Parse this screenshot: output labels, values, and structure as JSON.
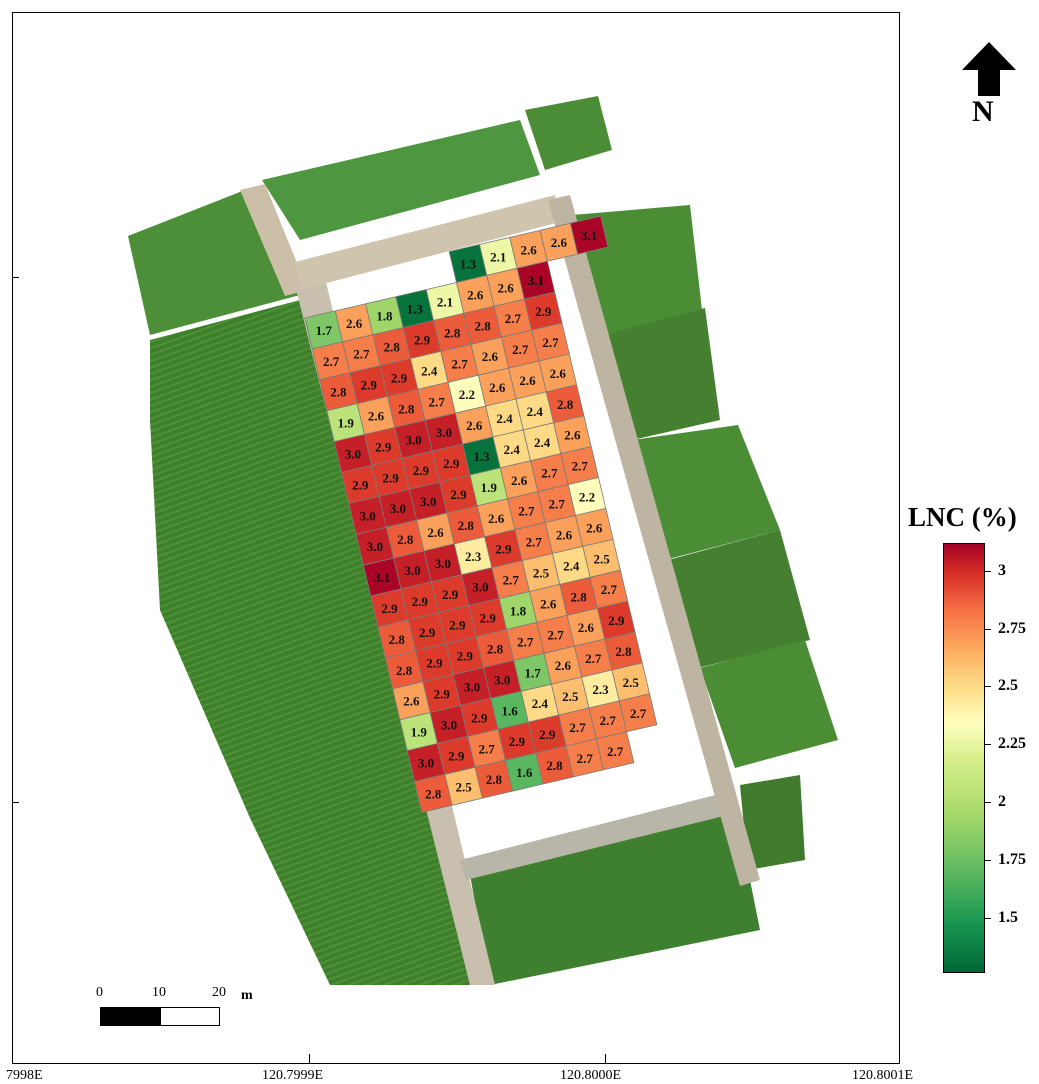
{
  "map": {
    "north_label": "N",
    "legend_title": "LNC (%)",
    "colorbar_ticks": [
      "3",
      "2.75",
      "2.5",
      "2.25",
      "2",
      "1.75",
      "1.5"
    ],
    "colorbar_range": [
      1.26,
      3.12
    ],
    "colormap": [
      "#006837",
      "#1a9850",
      "#66bd63",
      "#a6d96a",
      "#d9ef8b",
      "#ffffbf",
      "#fee08b",
      "#fdae61",
      "#f46d43",
      "#d73027",
      "#a50026"
    ],
    "scale_bar": {
      "labels": [
        "0",
        "10",
        "20"
      ],
      "unit": "m"
    },
    "longitude_labels": [
      "7998E",
      "120.7999E",
      "120.8000E",
      "120.8001E"
    ],
    "plot_values": [
      [
        null,
        null,
        null,
        null,
        null,
        "1.3",
        "2.1",
        "2.6",
        "2.6",
        "3.1"
      ],
      [
        "1.7",
        "2.6",
        "1.8",
        "1.3",
        "2.1",
        "2.6",
        "2.6",
        "3.1",
        null,
        null
      ],
      [
        "2.7",
        "2.7",
        "2.8",
        "2.9",
        "2.8",
        "2.8",
        "2.7",
        "2.9",
        null,
        null
      ],
      [
        "2.8",
        "2.9",
        "2.9",
        "2.4",
        "2.7",
        "2.6",
        "2.7",
        "2.7",
        null,
        null
      ],
      [
        "1.9",
        "2.6",
        "2.8",
        "2.7",
        "2.2",
        "2.6",
        "2.6",
        "2.6",
        null,
        null
      ],
      [
        "3.0",
        "2.9",
        "3.0",
        "3.0",
        "2.6",
        "2.4",
        "2.4",
        "2.8",
        null,
        null
      ],
      [
        "2.9",
        "2.9",
        "2.9",
        "2.9",
        "1.3",
        "2.4",
        "2.4",
        "2.6",
        null,
        null
      ],
      [
        "3.0",
        "3.0",
        "3.0",
        "2.9",
        "1.9",
        "2.6",
        "2.7",
        "2.7",
        null,
        null
      ],
      [
        "3.0",
        "2.8",
        "2.6",
        "2.8",
        "2.6",
        "2.7",
        "2.7",
        "2.2",
        null,
        null
      ],
      [
        "3.1",
        "3.0",
        "3.0",
        "2.3",
        "2.9",
        "2.7",
        "2.6",
        "2.6",
        null,
        null
      ],
      [
        "2.9",
        "2.9",
        "2.9",
        "3.0",
        "2.7",
        "2.5",
        "2.4",
        "2.5",
        null,
        null
      ],
      [
        "2.8",
        "2.9",
        "2.9",
        "2.9",
        "1.8",
        "2.6",
        "2.8",
        "2.7",
        null,
        null
      ],
      [
        "2.8",
        "2.9",
        "2.9",
        "2.8",
        "2.7",
        "2.7",
        "2.6",
        "2.9",
        null,
        null
      ],
      [
        "2.6",
        "2.9",
        "3.0",
        "3.0",
        "1.7",
        "2.6",
        "2.7",
        "2.8",
        null,
        null
      ],
      [
        "1.9",
        "3.0",
        "2.9",
        "1.6",
        "2.4",
        "2.5",
        "2.3",
        "2.5",
        null,
        null
      ],
      [
        "3.0",
        "2.9",
        "2.7",
        "2.9",
        "2.9",
        "2.7",
        "2.7",
        "2.7",
        null,
        null
      ],
      [
        "2.8",
        "2.5",
        "2.8",
        "1.6",
        "2.8",
        "2.7",
        "2.7",
        null,
        null,
        null
      ]
    ]
  }
}
